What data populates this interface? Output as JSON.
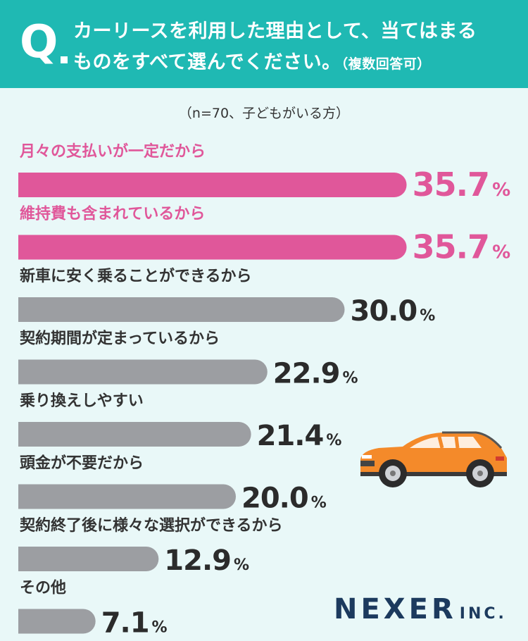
{
  "header": {
    "q_mark": "Q",
    "question_line1": "カーリースを利用した理由として、当てはまる",
    "question_line2": "ものをすべて選んでください。",
    "question_note": "（複数回答可）"
  },
  "sample_note": "（n=70、子どもがいる方）",
  "chart_data": {
    "type": "bar",
    "orientation": "horizontal",
    "categories": [
      "月々の支払いが一定だから",
      "維持費も含まれているから",
      "新車に安く乗ることができるから",
      "契約期間が定まっているから",
      "乗り換えしやすい",
      "頭金が不要だから",
      "契約終了後に様々な選択ができるから",
      "その他"
    ],
    "values": [
      35.7,
      35.7,
      30.0,
      22.9,
      21.4,
      20.0,
      12.9,
      7.1
    ],
    "value_labels": [
      "35.7",
      "35.7",
      "30.0",
      "22.9",
      "21.4",
      "20.0",
      "12.9",
      "7.1"
    ],
    "unit": "%",
    "highlight_count": 2,
    "colors": {
      "highlight": "#e0579a",
      "normal": "#9c9ea2",
      "label_highlight": "#e0579a",
      "label_normal": "#333333"
    }
  },
  "logo": {
    "main": "NEXER",
    "suffix": "INC."
  },
  "colors": {
    "header_bg": "#1fb9b3",
    "page_bg": "#e9f8f8",
    "car": "#f48a2a"
  }
}
